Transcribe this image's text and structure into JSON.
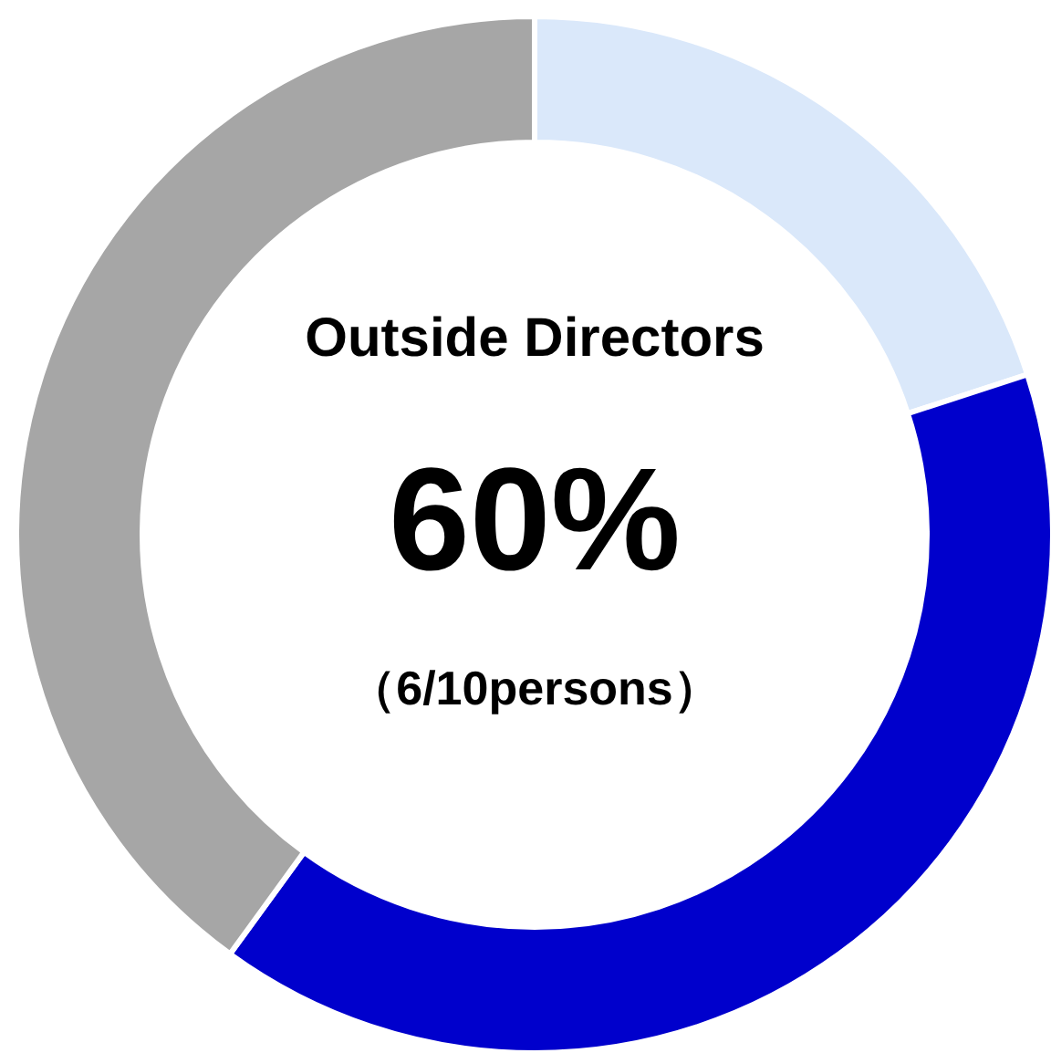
{
  "chart_data": {
    "type": "donut",
    "categories": [
      null,
      null,
      null
    ],
    "values": [
      20,
      40,
      40
    ],
    "colors": [
      "#dae8fa",
      "#0000cc",
      "#a6a6a6"
    ],
    "annotations": [
      "Outside Directors",
      "60%",
      "（6/10persons）"
    ]
  }
}
